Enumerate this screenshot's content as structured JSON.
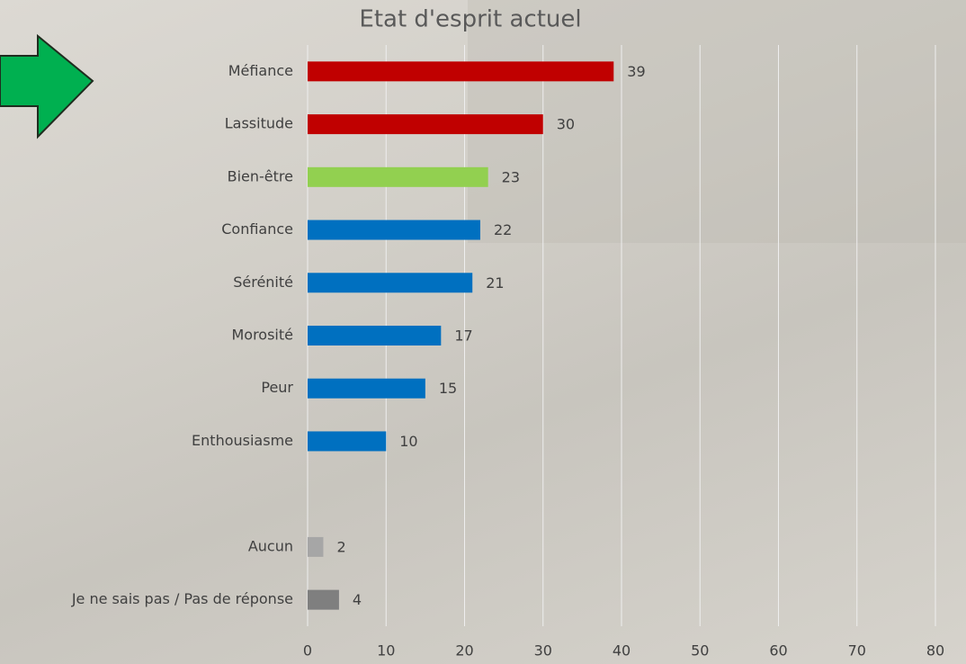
{
  "chart_data": {
    "type": "bar",
    "orientation": "horizontal",
    "title": "Etat d'esprit actuel",
    "categories": [
      "Méfiance",
      "Lassitude",
      "Bien-être",
      "Confiance",
      "Sérénité",
      "Morosité",
      "Peur",
      "Enthousiasme",
      null,
      "Aucun",
      "Je ne sais pas / Pas de réponse"
    ],
    "values": [
      39,
      30,
      23,
      22,
      21,
      17,
      15,
      10,
      null,
      2,
      4
    ],
    "colors": [
      "#c00000",
      "#c00000",
      "#92d050",
      "#0070c0",
      "#0070c0",
      "#0070c0",
      "#0070c0",
      "#0070c0",
      null,
      "#a6a6a6",
      "#7f7f7f"
    ],
    "xlim": [
      0,
      80
    ],
    "xticks": [
      0,
      10,
      20,
      30,
      40,
      50,
      60,
      70,
      80
    ],
    "grid": true
  }
}
